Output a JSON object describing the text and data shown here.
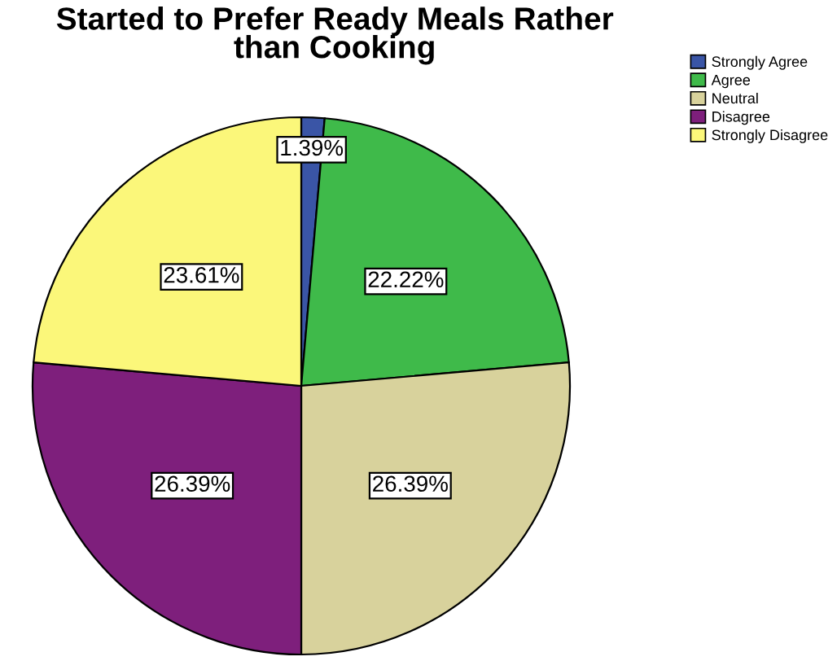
{
  "chart_data": {
    "type": "pie",
    "title": "Started to Prefer Ready Meals Rather\nthan Cooking",
    "categories": [
      "Strongly Agree",
      "Agree",
      "Neutral",
      "Disagree",
      "Strongly Disagree"
    ],
    "values": [
      1.39,
      22.22,
      26.39,
      26.39,
      23.61
    ],
    "value_labels": [
      "1.39%",
      "22.22%",
      "26.39%",
      "26.39%",
      "23.61%"
    ],
    "colors": [
      "#3a55a6",
      "#3fba4a",
      "#d8d29c",
      "#7e1f7c",
      "#fbf77a"
    ],
    "legend": "top right"
  }
}
